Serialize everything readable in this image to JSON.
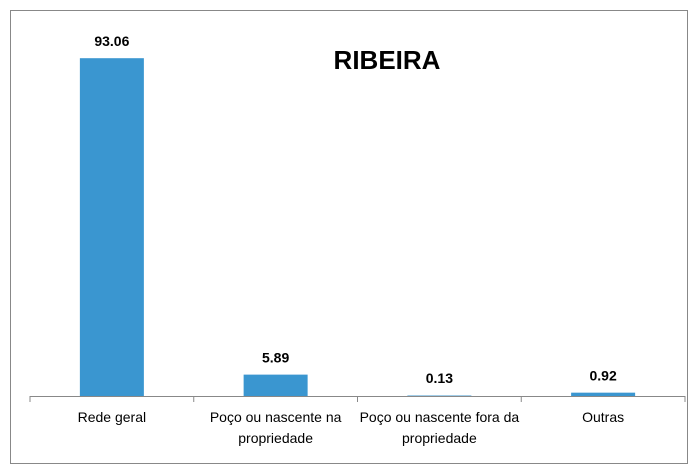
{
  "chart_data": {
    "type": "bar",
    "title": "RIBEIRA",
    "categories": [
      "Rede geral",
      "Poço ou nascente na propriedade",
      "Poço ou nascente fora da propriedade",
      "Outras"
    ],
    "values": [
      93.06,
      5.89,
      0.13,
      0.92
    ],
    "color": "#3a96d0",
    "ylim": [
      0,
      100
    ]
  }
}
